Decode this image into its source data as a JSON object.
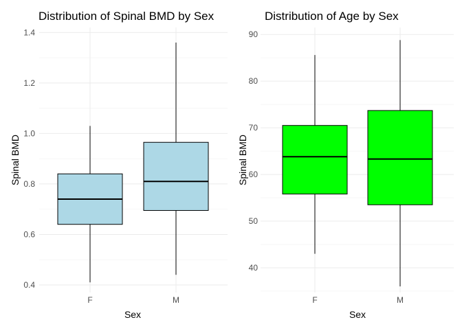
{
  "chart_data": [
    {
      "type": "box",
      "title": "Distribution of Spinal BMD by Sex",
      "xlabel": "Sex",
      "ylabel": "Spinal BMD",
      "categories": [
        "F",
        "M"
      ],
      "ylim": [
        0.37,
        1.42
      ],
      "yticks": [
        0.4,
        0.6,
        0.8,
        1.0,
        1.2,
        1.4
      ],
      "ytick_labels": [
        "0.4",
        "0.6",
        "0.8",
        "1.0",
        "1.2",
        "1.4"
      ],
      "fill": "#add8e6",
      "boxes": [
        {
          "category": "F",
          "min": 0.41,
          "q1": 0.64,
          "median": 0.74,
          "q3": 0.84,
          "max": 1.03
        },
        {
          "category": "M",
          "min": 0.44,
          "q1": 0.695,
          "median": 0.81,
          "q3": 0.965,
          "max": 1.36
        }
      ],
      "grid": true
    },
    {
      "type": "box",
      "title": "Distribution of Age by Sex",
      "xlabel": "Sex",
      "ylabel": "Spinal BMD",
      "categories": [
        "F",
        "M"
      ],
      "ylim": [
        34.7,
        91.5
      ],
      "yticks": [
        40,
        50,
        60,
        70,
        80,
        90
      ],
      "ytick_labels": [
        "40",
        "50",
        "60",
        "70",
        "80",
        "90"
      ],
      "fill": "#00ff00",
      "boxes": [
        {
          "category": "F",
          "min": 43,
          "q1": 55.8,
          "median": 63.8,
          "q3": 70.5,
          "max": 85.6
        },
        {
          "category": "M",
          "min": 36,
          "q1": 53.5,
          "median": 63.3,
          "q3": 73.7,
          "max": 88.8
        }
      ],
      "grid": true
    }
  ]
}
